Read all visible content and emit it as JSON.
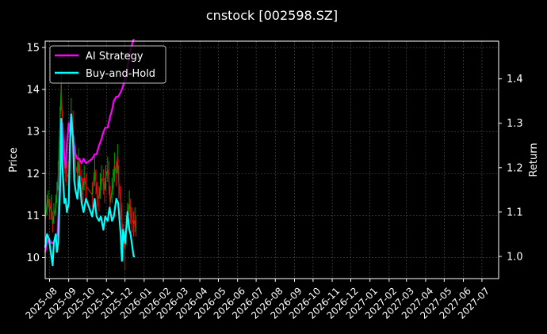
{
  "chart_data": {
    "type": "line",
    "title": "cnstock [002598.SZ]",
    "xlabel": "",
    "ylabel": "Price",
    "y2label": "Return",
    "x_ticks": [
      "2025-08",
      "2025-09",
      "2025-10",
      "2025-11",
      "2025-12",
      "2026-01",
      "2026-02",
      "2026-03",
      "2026-04",
      "2026-05",
      "2026-06",
      "2026-07",
      "2026-08",
      "2026-09",
      "2026-10",
      "2026-11",
      "2026-12",
      "2027-01",
      "2027-02",
      "2027-03",
      "2027-04",
      "2027-05",
      "2027-06",
      "2027-07"
    ],
    "xlim": [
      "2025-07-25",
      "2027-07-28"
    ],
    "ylim": [
      9.5,
      15.15
    ],
    "y_ticks": [
      10,
      11,
      12,
      13,
      14,
      15
    ],
    "y2lim": [
      0.95,
      1.485
    ],
    "y2_ticks": [
      1.0,
      1.1,
      1.2,
      1.3,
      1.4
    ],
    "grid": true,
    "legend_position": "top-left",
    "colors": {
      "background": "#000000",
      "ai_strategy": "#ff00ff",
      "buy_hold": "#00ffff",
      "price_up": "#00a000",
      "price_down": "#e01010",
      "grid": "#555555",
      "axes": "#ffffff"
    },
    "price_series": {
      "name": "",
      "x": [
        "2025-07-25",
        "2025-07-28",
        "2025-07-30",
        "2025-08-01",
        "2025-08-04",
        "2025-08-06",
        "2025-08-08",
        "2025-08-11",
        "2025-08-13",
        "2025-08-15",
        "2025-08-18",
        "2025-08-20",
        "2025-08-22",
        "2025-08-25",
        "2025-08-27",
        "2025-08-29",
        "2025-09-01",
        "2025-09-03",
        "2025-09-05",
        "2025-09-08",
        "2025-09-10",
        "2025-09-12",
        "2025-09-15",
        "2025-09-17",
        "2025-09-19",
        "2025-09-22",
        "2025-09-24",
        "2025-09-26",
        "2025-09-29",
        "2025-10-09",
        "2025-10-13",
        "2025-10-15",
        "2025-10-17",
        "2025-10-20",
        "2025-10-22",
        "2025-10-24",
        "2025-10-27",
        "2025-10-29",
        "2025-10-31",
        "2025-11-03",
        "2025-11-05",
        "2025-11-07",
        "2025-11-10",
        "2025-11-12",
        "2025-11-14",
        "2025-11-17",
        "2025-11-19",
        "2025-11-21",
        "2025-11-24",
        "2025-11-26",
        "2025-11-28",
        "2025-12-01",
        "2025-12-03",
        "2025-12-05",
        "2025-12-08",
        "2025-12-10",
        "2025-12-12",
        "2025-12-15",
        "2025-12-17",
        "2025-12-19"
      ],
      "values": [
        10.9,
        11.3,
        11.4,
        11.1,
        11.3,
        10.8,
        11.0,
        11.2,
        11.5,
        11.9,
        13.2,
        14.1,
        13.0,
        12.4,
        12.1,
        12.0,
        11.9,
        12.7,
        13.4,
        13.1,
        12.5,
        12.2,
        12.0,
        12.3,
        12.0,
        11.8,
        11.6,
        11.9,
        11.7,
        11.5,
        12.1,
        11.8,
        11.5,
        11.4,
        11.7,
        11.9,
        11.8,
        11.6,
        11.9,
        12.1,
        11.9,
        11.3,
        11.6,
        11.8,
        12.2,
        12.0,
        12.4,
        11.8,
        11.3,
        10.9,
        10.4,
        10.2,
        10.7,
        11.0,
        11.3,
        11.1,
        10.9,
        10.8,
        10.9,
        10.7
      ],
      "low": [
        10.7,
        11.0,
        11.2,
        10.9,
        10.9,
        10.6,
        10.8,
        11.0,
        11.3,
        11.6,
        12.7,
        13.5,
        12.5,
        12.0,
        11.8,
        11.7,
        11.6,
        12.3,
        12.9,
        12.6,
        12.1,
        11.9,
        11.7,
        11.9,
        11.7,
        11.5,
        11.3,
        11.6,
        11.4,
        11.2,
        11.7,
        11.5,
        11.2,
        11.1,
        11.4,
        11.6,
        11.5,
        11.3,
        11.6,
        11.8,
        11.5,
        11.0,
        11.3,
        11.5,
        11.8,
        11.7,
        12.0,
        11.4,
        10.9,
        10.4,
        9.9,
        9.7,
        10.3,
        10.7,
        11.0,
        10.8,
        10.6,
        10.5,
        10.6,
        10.5
      ],
      "high": [
        11.2,
        11.5,
        11.6,
        11.4,
        11.5,
        11.1,
        11.3,
        11.5,
        11.8,
        12.3,
        13.6,
        14.5,
        13.5,
        12.8,
        12.4,
        12.3,
        12.3,
        13.1,
        13.8,
        13.5,
        12.9,
        12.6,
        12.3,
        12.6,
        12.3,
        12.1,
        11.9,
        12.2,
        12.0,
        11.8,
        12.4,
        12.1,
        11.8,
        11.7,
        12.0,
        12.2,
        12.1,
        11.9,
        12.2,
        12.4,
        12.3,
        11.7,
        11.9,
        12.1,
        12.5,
        12.3,
        12.7,
        12.2,
        11.7,
        11.3,
        10.8,
        10.6,
        11.0,
        11.3,
        11.6,
        11.4,
        11.2,
        11.1,
        11.2,
        11.0
      ]
    },
    "series": [
      {
        "name": "AI Strategy",
        "x": [
          "2025-07-25",
          "2025-07-28",
          "2025-07-31",
          "2025-08-04",
          "2025-08-07",
          "2025-08-11",
          "2025-08-14",
          "2025-08-18",
          "2025-08-20",
          "2025-08-22",
          "2025-08-25",
          "2025-08-27",
          "2025-08-29",
          "2025-09-01",
          "2025-09-03",
          "2025-09-05",
          "2025-09-08",
          "2025-09-10",
          "2025-09-12",
          "2025-09-15",
          "2025-09-18",
          "2025-09-22",
          "2025-09-25",
          "2025-09-29",
          "2025-10-09",
          "2025-10-13",
          "2025-10-16",
          "2025-10-20",
          "2025-10-23",
          "2025-10-27",
          "2025-10-30",
          "2025-11-03",
          "2025-11-06",
          "2025-11-10",
          "2025-11-13",
          "2025-11-17",
          "2025-11-20",
          "2025-11-24",
          "2025-11-27",
          "2025-12-01",
          "2025-12-04",
          "2025-12-08",
          "2025-12-11",
          "2025-12-15"
        ],
        "values": [
          1.01,
          1.03,
          1.04,
          1.03,
          1.03,
          1.04,
          1.05,
          1.17,
          1.25,
          1.3,
          1.22,
          1.2,
          1.25,
          1.3,
          1.28,
          1.32,
          1.27,
          1.25,
          1.23,
          1.22,
          1.22,
          1.21,
          1.22,
          1.21,
          1.22,
          1.23,
          1.23,
          1.25,
          1.26,
          1.28,
          1.29,
          1.29,
          1.31,
          1.33,
          1.35,
          1.36,
          1.36,
          1.37,
          1.38,
          1.4,
          1.42,
          1.45,
          1.47,
          1.49
        ]
      },
      {
        "name": "Buy-and-Hold",
        "x": [
          "2025-07-25",
          "2025-07-28",
          "2025-07-31",
          "2025-08-04",
          "2025-08-06",
          "2025-08-08",
          "2025-08-11",
          "2025-08-13",
          "2025-08-15",
          "2025-08-18",
          "2025-08-20",
          "2025-08-22",
          "2025-08-25",
          "2025-08-27",
          "2025-08-29",
          "2025-09-01",
          "2025-09-03",
          "2025-09-05",
          "2025-09-08",
          "2025-09-10",
          "2025-09-12",
          "2025-09-15",
          "2025-09-18",
          "2025-09-22",
          "2025-09-25",
          "2025-09-29",
          "2025-10-09",
          "2025-10-13",
          "2025-10-16",
          "2025-10-20",
          "2025-10-23",
          "2025-10-27",
          "2025-10-30",
          "2025-11-03",
          "2025-11-06",
          "2025-11-10",
          "2025-11-13",
          "2025-11-17",
          "2025-11-20",
          "2025-11-24",
          "2025-11-26",
          "2025-11-28",
          "2025-12-01",
          "2025-12-03",
          "2025-12-05",
          "2025-12-08",
          "2025-12-10",
          "2025-12-12",
          "2025-12-15",
          "2025-12-17"
        ],
        "values": [
          1.02,
          1.05,
          1.04,
          1.0,
          0.98,
          1.03,
          1.05,
          1.01,
          1.03,
          1.15,
          1.31,
          1.2,
          1.12,
          1.13,
          1.1,
          1.12,
          1.25,
          1.32,
          1.26,
          1.17,
          1.15,
          1.13,
          1.18,
          1.12,
          1.1,
          1.13,
          1.09,
          1.13,
          1.09,
          1.08,
          1.09,
          1.06,
          1.09,
          1.08,
          1.11,
          1.08,
          1.09,
          1.13,
          1.12,
          1.05,
          0.99,
          1.06,
          1.03,
          1.06,
          1.1,
          1.06,
          1.05,
          1.03,
          1.0,
          1.0
        ]
      }
    ]
  }
}
